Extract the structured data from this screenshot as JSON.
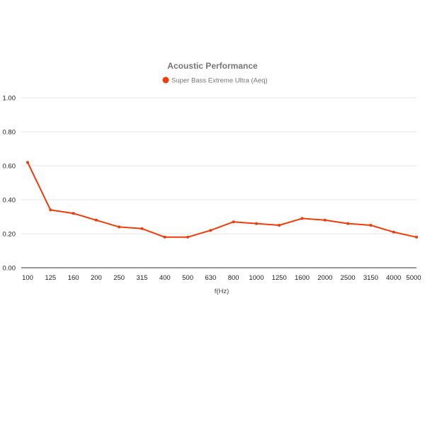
{
  "chart_data": {
    "type": "line",
    "title": "Acoustic Performance",
    "xlabel": "f(Hz)",
    "ylabel": "",
    "categories": [
      "100",
      "125",
      "160",
      "200",
      "250",
      "315",
      "400",
      "500",
      "630",
      "800",
      "1000",
      "1250",
      "1600",
      "2000",
      "2500",
      "3150",
      "4000",
      "5000"
    ],
    "series": [
      {
        "name": "Super Bass Extreme Ultra (Aeq)",
        "color": "#ee3d0a",
        "values": [
          0.62,
          0.34,
          0.32,
          0.28,
          0.24,
          0.23,
          0.18,
          0.18,
          0.22,
          0.27,
          0.26,
          0.25,
          0.29,
          0.28,
          0.26,
          0.25,
          0.21,
          0.18
        ]
      }
    ],
    "ylim": [
      0,
      1
    ],
    "yticks": [
      "0.00",
      "0.20",
      "0.40",
      "0.60",
      "0.80",
      "1.00"
    ],
    "grid": true,
    "legend_position": "top-center"
  }
}
